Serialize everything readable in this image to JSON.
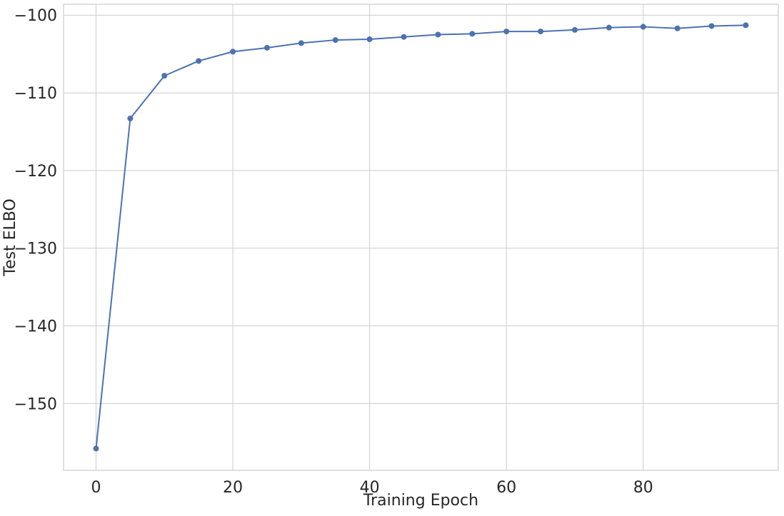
{
  "chart_data": {
    "type": "line",
    "title": "",
    "xlabel": "Training Epoch",
    "ylabel": "Test ELBO",
    "xlim": [
      -4.75,
      99.75
    ],
    "ylim": [
      -158.6,
      -98.6
    ],
    "xticks": [
      0,
      20,
      40,
      60,
      80
    ],
    "yticks": [
      -150,
      -140,
      -130,
      -120,
      -110,
      -100
    ],
    "xtick_labels": [
      "0",
      "20",
      "40",
      "60",
      "80"
    ],
    "ytick_labels": [
      "−150",
      "−140",
      "−130",
      "−120",
      "−110",
      "−100"
    ],
    "grid": true,
    "legend": "none",
    "series": [
      {
        "color": "#4c72b0",
        "marker": "circle",
        "x": [
          0,
          5,
          10,
          15,
          20,
          25,
          30,
          35,
          40,
          45,
          50,
          55,
          60,
          65,
          70,
          75,
          80,
          85,
          90,
          95
        ],
        "y": [
          -155.8,
          -113.3,
          -107.8,
          -105.9,
          -104.7,
          -104.2,
          -103.6,
          -103.2,
          -103.1,
          -102.8,
          -102.5,
          -102.4,
          -102.1,
          -102.1,
          -101.9,
          -101.6,
          -101.5,
          -101.7,
          -101.4,
          -101.3
        ]
      }
    ]
  }
}
